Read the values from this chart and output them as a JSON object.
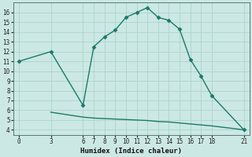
{
  "xlabel": "Humidex (Indice chaleur)",
  "background_color": "#cce8e4",
  "grid_color": "#aad4cc",
  "line_color": "#1a7a6a",
  "upper_line": {
    "x": [
      0,
      3,
      6,
      7,
      8,
      9,
      10,
      11,
      12,
      13,
      14,
      15,
      16,
      17,
      18,
      21
    ],
    "y": [
      11.0,
      12.0,
      6.5,
      12.5,
      13.5,
      14.2,
      15.5,
      16.0,
      16.5,
      15.5,
      15.2,
      14.3,
      11.2,
      9.5,
      7.5,
      4.0
    ]
  },
  "lower_line": {
    "x": [
      3,
      6,
      7,
      8,
      9,
      10,
      11,
      12,
      13,
      14,
      15,
      16,
      17,
      18,
      21
    ],
    "y": [
      5.8,
      5.3,
      5.2,
      5.15,
      5.1,
      5.05,
      5.0,
      4.95,
      4.85,
      4.8,
      4.7,
      4.6,
      4.5,
      4.4,
      4.0
    ]
  },
  "xlim": [
    -0.5,
    21.5
  ],
  "ylim": [
    3.5,
    17.0
  ],
  "xticks": [
    0,
    3,
    6,
    7,
    8,
    9,
    10,
    11,
    12,
    13,
    14,
    15,
    16,
    17,
    18,
    21
  ],
  "yticks": [
    4,
    5,
    6,
    7,
    8,
    9,
    10,
    11,
    12,
    13,
    14,
    15,
    16
  ],
  "marker": "D",
  "marker_size": 2.5,
  "linewidth": 1.0
}
